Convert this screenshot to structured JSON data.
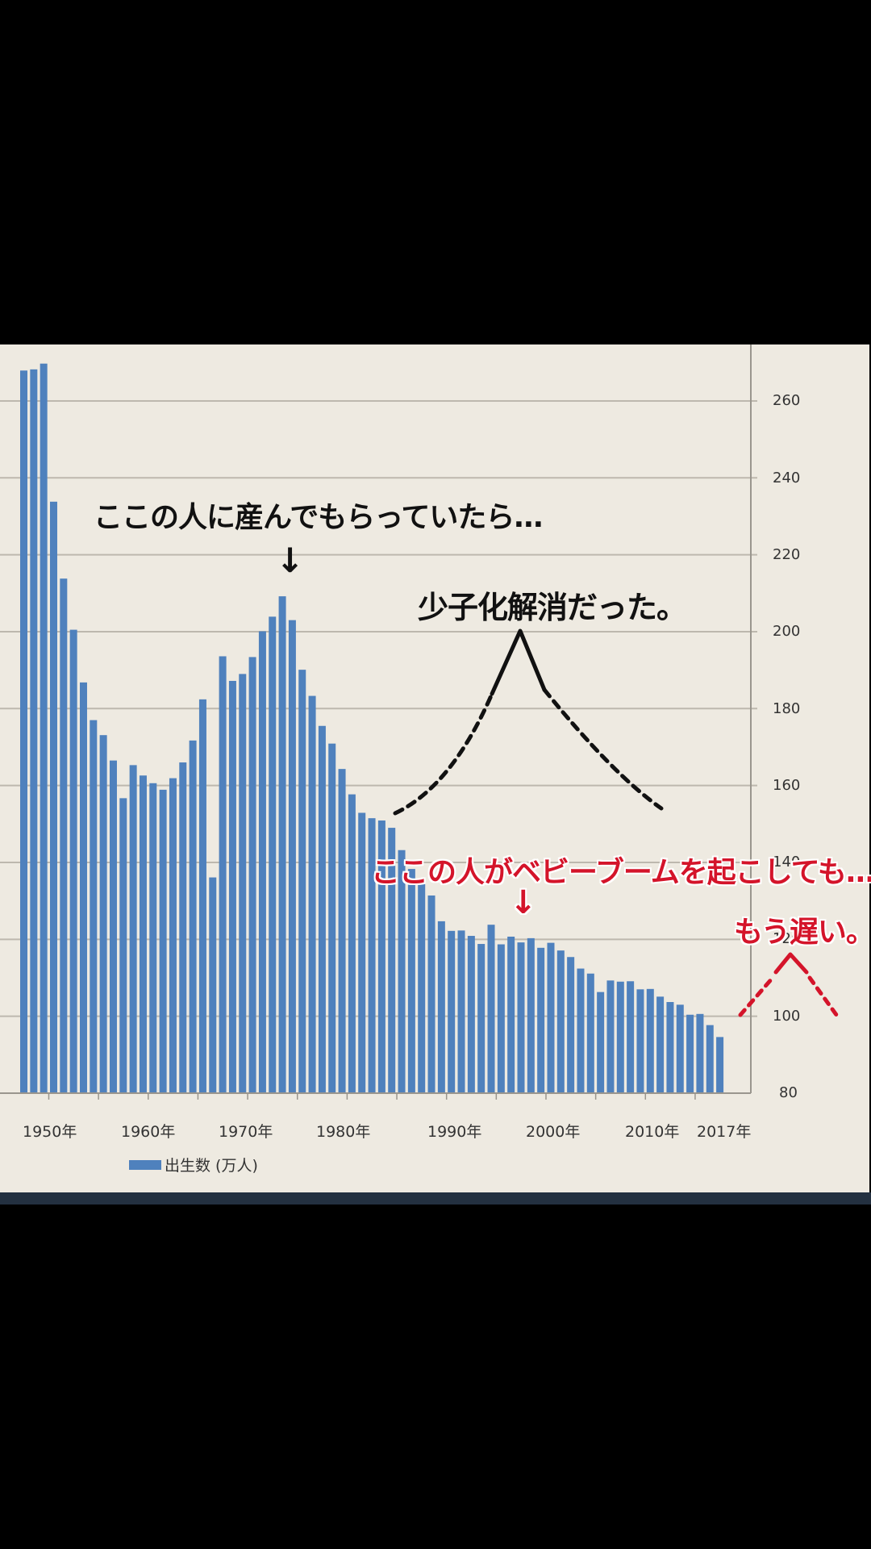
{
  "chart_data": {
    "type": "bar",
    "title": "",
    "xlabel": "",
    "ylabel": "",
    "ylim": [
      80,
      270
    ],
    "yticks": [
      80,
      100,
      120,
      140,
      160,
      180,
      200,
      220,
      240,
      260
    ],
    "y_axis_position": "right",
    "grid": true,
    "legend_position": "bottom-left",
    "x_tick_labels": [
      "1950年",
      "1960年",
      "1970年",
      "1980年",
      "1990年",
      "2000年",
      "2010年",
      "2017年"
    ],
    "categories": [
      1947,
      1948,
      1949,
      1950,
      1951,
      1952,
      1953,
      1954,
      1955,
      1956,
      1957,
      1958,
      1959,
      1960,
      1961,
      1962,
      1963,
      1964,
      1965,
      1966,
      1967,
      1968,
      1969,
      1970,
      1971,
      1972,
      1973,
      1974,
      1975,
      1976,
      1977,
      1978,
      1979,
      1980,
      1981,
      1982,
      1983,
      1984,
      1985,
      1986,
      1987,
      1988,
      1989,
      1990,
      1991,
      1992,
      1993,
      1994,
      1995,
      1996,
      1997,
      1998,
      1999,
      2000,
      2001,
      2002,
      2003,
      2004,
      2005,
      2006,
      2007,
      2008,
      2009,
      2010,
      2011,
      2012,
      2013,
      2014,
      2015,
      2016,
      2017
    ],
    "series": [
      {
        "name": "出生数 (万人)",
        "color": "#4F81BD",
        "values": [
          267.9,
          268.2,
          269.7,
          233.8,
          213.8,
          200.5,
          186.8,
          177.0,
          173.1,
          166.5,
          156.7,
          165.3,
          162.6,
          160.6,
          158.9,
          161.9,
          166.0,
          171.7,
          182.4,
          136.1,
          193.6,
          187.2,
          189.0,
          193.4,
          200.1,
          203.9,
          209.2,
          203.0,
          190.1,
          183.3,
          175.5,
          170.9,
          164.3,
          157.7,
          152.9,
          151.5,
          150.9,
          149.0,
          143.2,
          138.3,
          134.7,
          131.4,
          124.7,
          122.2,
          122.3,
          120.9,
          118.8,
          123.8,
          118.7,
          120.7,
          119.2,
          120.3,
          117.8,
          119.1,
          117.1,
          115.4,
          112.4,
          111.1,
          106.3,
          109.3,
          109.0,
          109.1,
          107.0,
          107.1,
          105.1,
          103.7,
          103.0,
          100.4,
          100.6,
          97.7,
          94.6
        ]
      }
    ],
    "annotations": [
      {
        "text": "ここの人に産んでもらっていたら…",
        "color": "#111111",
        "points_to": 1973
      },
      {
        "text": "少子化解消だった。",
        "color": "#111111"
      },
      {
        "text": "ここの人がベビーブームを起こしても…",
        "color": "#D4142A",
        "points_to": 1997
      },
      {
        "text": "もう遅い。",
        "color": "#D4142A"
      }
    ]
  },
  "annotations": {
    "black_line1": "ここの人に産んでもらっていたら…",
    "black_arrow": "↓",
    "black_line2": "少子化解消だった。",
    "red_line1": "ここの人がベビーブームを起こしても…",
    "red_arrow": "↓",
    "red_line2": "もう遅い。"
  },
  "legend": {
    "label": "出生数 (万人)",
    "color": "#4F81BD"
  },
  "axis": {
    "y_labels": [
      "260",
      "240",
      "220",
      "200",
      "180",
      "160",
      "140",
      "120",
      "100",
      "80"
    ],
    "x_labels": [
      "1950年",
      "1960年",
      "1970年",
      "1980年",
      "1990年",
      "2000年",
      "2010年",
      "2017年"
    ]
  },
  "colors": {
    "background": "#EEEAE1",
    "bar": "#4F81BD",
    "grid": "#BDB8AE",
    "annotation_red": "#D4142A",
    "bottom_strip": "#233040"
  }
}
